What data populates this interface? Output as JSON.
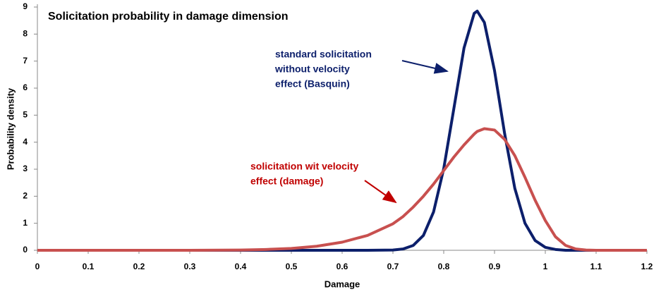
{
  "chart_data": {
    "type": "line",
    "title": "Solicitation probability in damage dimension",
    "x_label": "Damage",
    "y_label": "Probability density",
    "x": [
      0,
      0.3,
      0.4,
      0.45,
      0.5,
      0.55,
      0.6,
      0.65,
      0.7,
      0.72,
      0.74,
      0.76,
      0.78,
      0.8,
      0.82,
      0.84,
      0.86,
      0.866,
      0.88,
      0.9,
      0.92,
      0.94,
      0.96,
      0.98,
      1.0,
      1.02,
      1.04,
      1.06,
      1.08,
      1.1,
      1.2
    ],
    "series": [
      {
        "name": "standard solicitation without velocity effect (Basquin)",
        "color": "#0c1f6b",
        "values": [
          0,
          0,
          0,
          0,
          0,
          0,
          0,
          0,
          0.01,
          0.05,
          0.18,
          0.55,
          1.42,
          3.02,
          5.25,
          7.49,
          8.77,
          8.85,
          8.43,
          6.65,
          4.31,
          2.29,
          1.0,
          0.36,
          0.11,
          0.03,
          0,
          0,
          0,
          0,
          0
        ]
      },
      {
        "name": "solicitation wit velocity effect (damage)",
        "color": "#c8504f",
        "values": [
          0,
          0,
          0.01,
          0.03,
          0.07,
          0.15,
          0.3,
          0.55,
          0.98,
          1.25,
          1.6,
          2.0,
          2.45,
          2.95,
          3.45,
          3.9,
          4.3,
          4.4,
          4.5,
          4.45,
          4.1,
          3.5,
          2.7,
          1.85,
          1.1,
          0.5,
          0.18,
          0.05,
          0.01,
          0,
          0
        ]
      }
    ],
    "annotations": [
      {
        "lines": [
          "standard solicitation",
          "without velocity",
          "effect (Basquin)"
        ],
        "color": "#0c1f6b"
      },
      {
        "lines": [
          "solicitation wit velocity",
          "effect (damage)"
        ],
        "color": "#c00000"
      }
    ],
    "xlim": [
      0,
      1.2
    ],
    "ylim": [
      0,
      9
    ],
    "xticks": [
      0,
      0.1,
      0.2,
      0.3,
      0.4,
      0.5,
      0.6,
      0.7,
      0.8,
      0.9,
      1,
      1.1,
      1.2
    ],
    "yticks": [
      0,
      1,
      2,
      3,
      4,
      5,
      6,
      7,
      8,
      9
    ],
    "grid": false
  }
}
